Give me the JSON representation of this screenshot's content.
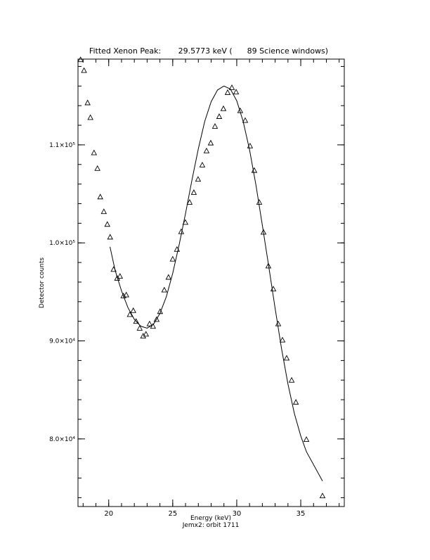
{
  "chart_data": {
    "type": "scatter",
    "title": "Fitted Xenon Peak:       29.5773 keV (      89 Science windows)",
    "x_label": "Energy (keV)",
    "subtitle": "Jemx2: orbit 1711",
    "y_label": "Detector counts",
    "xlim": [
      17.6,
      38.4
    ],
    "ylim": [
      73100,
      118750
    ],
    "xticks": [
      20,
      25,
      30,
      35
    ],
    "yticks": [
      {
        "value": 80000,
        "label": "8.0×10⁴"
      },
      {
        "value": 90000,
        "label": "9.0×10⁴"
      },
      {
        "value": 100000,
        "label": "1.0×10⁵"
      },
      {
        "value": 110000,
        "label": "1.1×10⁵"
      }
    ],
    "minor": 5,
    "series": [
      {
        "type": "scatter",
        "color": "#000000",
        "x": [
          17.8,
          18.07,
          18.35,
          18.57,
          18.85,
          19.12,
          19.34,
          19.62,
          19.89,
          20.11,
          20.38,
          20.66,
          20.88,
          21.15,
          21.37,
          21.65,
          21.92,
          22.14,
          22.42,
          22.69,
          22.91,
          23.19,
          23.46,
          23.74,
          24.01,
          24.34,
          24.67,
          25.0,
          25.33,
          25.66,
          25.99,
          26.32,
          26.65,
          26.98,
          27.31,
          27.64,
          27.97,
          28.3,
          28.63,
          28.96,
          29.29,
          29.62,
          29.95,
          30.27,
          30.66,
          31.04,
          31.37,
          31.76,
          32.09,
          32.47,
          32.86,
          33.24,
          33.57,
          33.9,
          34.29,
          34.62,
          35.44,
          36.7
        ],
        "y": [
          118700,
          117600,
          114300,
          112800,
          109200,
          107600,
          104700,
          103200,
          101900,
          100600,
          97300,
          96400,
          96600,
          94600,
          94700,
          92700,
          93100,
          92000,
          91300,
          90500,
          90700,
          91750,
          91500,
          92200,
          93000,
          95200,
          96500,
          98350,
          99350,
          101150,
          102100,
          104150,
          105150,
          106500,
          107950,
          109400,
          110200,
          111900,
          112900,
          113700,
          115350,
          115850,
          115400,
          113500,
          112500,
          109900,
          107400,
          104150,
          101100,
          97650,
          95300,
          91750,
          90100,
          88250,
          86000,
          83750,
          79950,
          74200
        ]
      },
      {
        "type": "line",
        "color": "#000000",
        "x": [
          20.1,
          20.5,
          21,
          21.5,
          22,
          22.5,
          23,
          23.5,
          24,
          24.5,
          25,
          25.5,
          26,
          26.5,
          27,
          27.5,
          28,
          28.5,
          29,
          29.5,
          30,
          30.5,
          31,
          31.5,
          32,
          32.5,
          33,
          33.5,
          34,
          34.5,
          35,
          35.44,
          36.7
        ],
        "y": [
          99600,
          97200,
          95100,
          93400,
          92200,
          91500,
          91300,
          91700,
          92800,
          94500,
          96900,
          99800,
          103000,
          106400,
          109600,
          112400,
          114400,
          115600,
          116000,
          115700,
          114500,
          112400,
          109500,
          105900,
          101800,
          97600,
          93300,
          89200,
          85600,
          82600,
          80300,
          78700,
          75700
        ]
      }
    ]
  }
}
